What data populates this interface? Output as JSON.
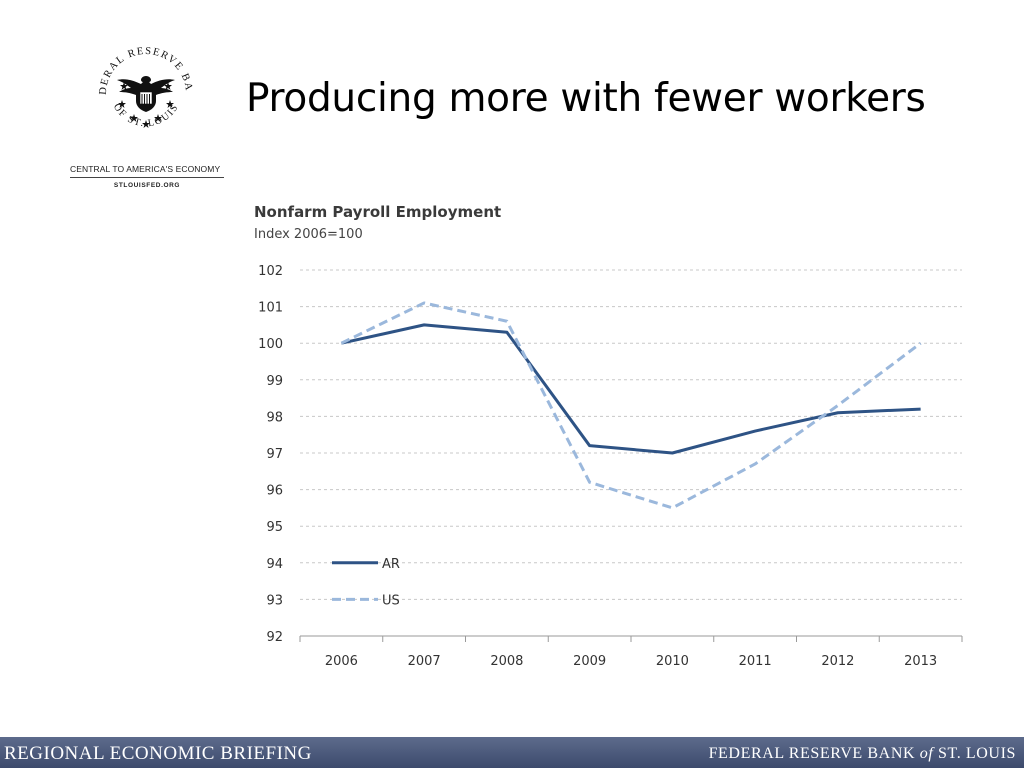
{
  "slide": {
    "title": "Producing more with fewer workers"
  },
  "logo": {
    "seal_text_top": "FEDERAL RESERVE BANK",
    "seal_text_bottom": "OF ST. LOUIS",
    "tagline": "CENTRAL TO AMERICA'S ECONOMY",
    "website": "STLOUISFED.ORG",
    "icon": "eagle-seal-icon"
  },
  "footer": {
    "left": "REGIONAL ECONOMIC BRIEFING",
    "right_pre": "FEDERAL RESERVE BANK ",
    "right_of": "of",
    "right_post": " ST. LOUIS"
  },
  "colors": {
    "ar": "#2e5385",
    "us": "#9bb8dc",
    "grid": "#c8c8c8",
    "footer": "#4a5878"
  },
  "chart_data": {
    "type": "line",
    "title": "Nonfarm  Payroll Employment",
    "subtitle": "Index 2006=100",
    "categories": [
      "2006",
      "2007",
      "2008",
      "2009",
      "2010",
      "2011",
      "2012",
      "2013"
    ],
    "ylim": [
      92,
      102
    ],
    "yticks": [
      92,
      93,
      94,
      95,
      96,
      97,
      98,
      99,
      100,
      101,
      102
    ],
    "grid": "horizontal dashed",
    "legend": "bottom-left",
    "series": [
      {
        "name": "AR",
        "style": "solid",
        "values": [
          100.0,
          100.5,
          100.3,
          97.2,
          97.0,
          97.6,
          98.1,
          98.2
        ]
      },
      {
        "name": "US",
        "style": "dashed",
        "values": [
          100.0,
          101.1,
          100.6,
          96.2,
          95.5,
          96.7,
          98.3,
          100.0
        ]
      }
    ]
  }
}
